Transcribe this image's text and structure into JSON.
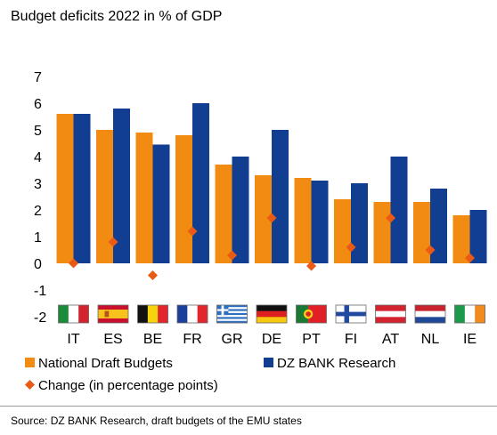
{
  "title": "Budget deficits 2022 in % of GDP",
  "source": "Source: DZ BANK Research, draft budgets of the EMU states",
  "colors": {
    "national": "#f28b12",
    "dz": "#123e91",
    "change": "#ea5a14"
  },
  "flag_icons": [
    "italy-flag-icon",
    "spain-flag-icon",
    "belgium-flag-icon",
    "france-flag-icon",
    "greece-flag-icon",
    "germany-flag-icon",
    "portugal-flag-icon",
    "finland-flag-icon",
    "austria-flag-icon",
    "netherlands-flag-icon",
    "ireland-flag-icon"
  ],
  "chart_data": {
    "type": "bar",
    "title": "Budget deficits 2022 in % of GDP",
    "xlabel": "",
    "ylabel": "",
    "ylim": [
      -2,
      7
    ],
    "yticks": [
      -2,
      -1,
      0,
      1,
      2,
      3,
      4,
      5,
      6,
      7
    ],
    "grid": false,
    "legend_position": "bottom",
    "categories": [
      "IT",
      "ES",
      "BE",
      "FR",
      "GR",
      "DE",
      "PT",
      "FI",
      "AT",
      "NL",
      "IE"
    ],
    "series": [
      {
        "name": "National Draft Budgets",
        "type": "bar",
        "values": [
          5.6,
          5.0,
          4.9,
          4.8,
          3.7,
          3.3,
          3.2,
          2.4,
          2.3,
          2.3,
          1.8
        ]
      },
      {
        "name": "DZ BANK Research",
        "type": "bar",
        "values": [
          5.6,
          5.8,
          4.45,
          6.0,
          4.0,
          5.0,
          3.1,
          3.0,
          4.0,
          2.8,
          2.0
        ]
      },
      {
        "name": "Change (in percentage points)",
        "type": "scatter",
        "values": [
          0.0,
          0.8,
          -0.45,
          1.2,
          0.3,
          1.7,
          -0.1,
          0.6,
          1.7,
          0.5,
          0.2
        ]
      }
    ]
  }
}
